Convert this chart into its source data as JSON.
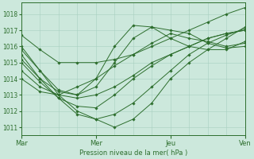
{
  "background_color": "#cce8dc",
  "grid_color": "#a8cfc0",
  "line_color": "#2d6e2d",
  "marker_color": "#2d6e2d",
  "xlabel": "Pression niveau de la mer( hPa )",
  "ylim": [
    1010.5,
    1018.7
  ],
  "yticks": [
    1011,
    1012,
    1013,
    1014,
    1015,
    1016,
    1017,
    1018
  ],
  "xtick_labels": [
    "Mar",
    "Mer",
    "Jeu",
    "Ven"
  ],
  "xtick_positions": [
    0,
    48,
    96,
    144
  ],
  "total_hours": 144,
  "series": [
    {
      "x": [
        0,
        12,
        24,
        36,
        48,
        60,
        72,
        84,
        96,
        108,
        120,
        132,
        144
      ],
      "y": [
        1016.7,
        1015.8,
        1015.0,
        1015.0,
        1015.0,
        1015.2,
        1015.5,
        1016.0,
        1016.5,
        1017.0,
        1017.5,
        1018.0,
        1018.4
      ]
    },
    {
      "x": [
        0,
        12,
        24,
        36,
        48,
        60,
        72,
        84,
        96,
        108,
        120,
        132,
        144
      ],
      "y": [
        1016.0,
        1014.5,
        1013.0,
        1012.0,
        1011.5,
        1011.0,
        1011.5,
        1012.5,
        1014.0,
        1015.0,
        1015.8,
        1016.5,
        1017.2
      ]
    },
    {
      "x": [
        0,
        12,
        24,
        36,
        48,
        60,
        72,
        84,
        96,
        108,
        120,
        132,
        144
      ],
      "y": [
        1015.5,
        1014.0,
        1012.8,
        1011.8,
        1011.5,
        1011.8,
        1012.5,
        1013.5,
        1014.5,
        1015.5,
        1016.2,
        1016.7,
        1017.1
      ]
    },
    {
      "x": [
        0,
        12,
        24,
        36,
        48,
        60,
        72,
        84,
        96,
        108,
        120,
        132,
        144
      ],
      "y": [
        1015.0,
        1013.8,
        1012.8,
        1012.3,
        1012.2,
        1013.0,
        1014.0,
        1014.8,
        1015.5,
        1016.0,
        1016.5,
        1016.8,
        1017.0
      ]
    },
    {
      "x": [
        0,
        12,
        24,
        36,
        48,
        60,
        72,
        84,
        96,
        108,
        120,
        132,
        144
      ],
      "y": [
        1014.5,
        1013.5,
        1013.0,
        1012.8,
        1013.0,
        1013.5,
        1014.2,
        1015.0,
        1015.5,
        1016.0,
        1016.5,
        1016.8,
        1017.0
      ]
    },
    {
      "x": [
        0,
        12,
        24,
        36,
        48,
        60,
        72,
        84,
        96,
        108,
        120,
        132,
        144
      ],
      "y": [
        1014.0,
        1013.2,
        1013.0,
        1013.5,
        1014.0,
        1014.8,
        1015.5,
        1016.2,
        1016.8,
        1016.5,
        1016.3,
        1016.0,
        1016.2
      ]
    },
    {
      "x": [
        0,
        12,
        24,
        36,
        48,
        60,
        72,
        84,
        96,
        108,
        120,
        132,
        144
      ],
      "y": [
        1015.8,
        1014.5,
        1013.3,
        1013.0,
        1013.5,
        1015.0,
        1016.5,
        1017.2,
        1017.0,
        1016.8,
        1016.2,
        1015.9,
        1016.0
      ]
    },
    {
      "x": [
        0,
        12,
        24,
        36,
        48,
        60,
        72,
        84,
        96,
        108,
        120,
        132,
        144
      ],
      "y": [
        1015.2,
        1014.0,
        1013.2,
        1013.0,
        1014.0,
        1016.0,
        1017.3,
        1017.2,
        1016.5,
        1016.0,
        1015.8,
        1015.8,
        1016.3
      ]
    }
  ]
}
